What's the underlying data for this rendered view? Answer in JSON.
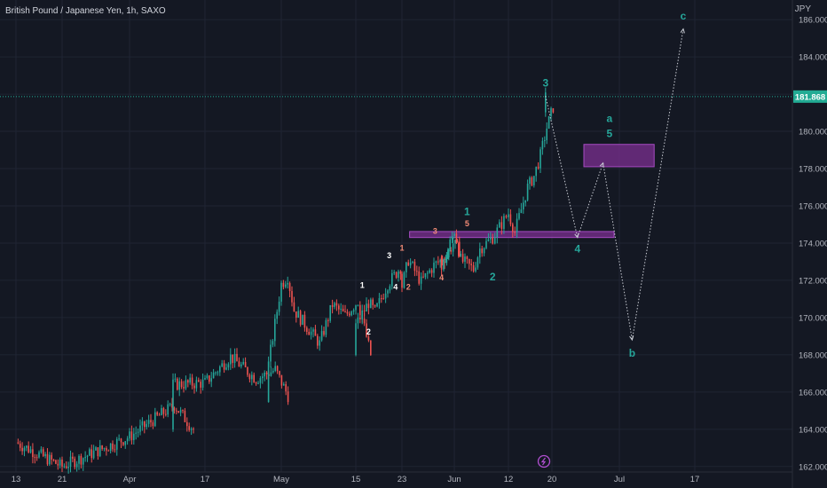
{
  "header": {
    "title": "British Pound / Japanese Yen, 1h, SAXO",
    "currency": "JPY"
  },
  "colors": {
    "background": "#141823",
    "up": "#26a69a",
    "down": "#ef5350",
    "grid": "#1f2433",
    "zone_fill": "#7b2f91",
    "zone_stroke": "#a64bc2",
    "wave_teal": "#26a69a",
    "wave_white": "#ffffff",
    "wave_salmon": "#f28b76",
    "price_tag": "#22ab94"
  },
  "chart_data": {
    "type": "candlestick",
    "x_ticks": [
      "13",
      "21",
      "Apr",
      "17",
      "May",
      "15",
      "23",
      "Jun",
      "12",
      "20",
      "Jul",
      "17"
    ],
    "y_ticks": [
      "162.000",
      "164.000",
      "166.000",
      "168.000",
      "170.000",
      "172.000",
      "174.000",
      "176.000",
      "178.000",
      "180.000",
      "182.000",
      "184.000",
      "186.000"
    ],
    "ylim": [
      162,
      186.6
    ],
    "last_price": "181.868",
    "price_path": [
      {
        "x": "13",
        "y": 163.3
      },
      {
        "x": "21",
        "y": 162.0
      },
      {
        "x": "Apr",
        "y": 163.6
      },
      {
        "x": "Apr+7",
        "y": 165.3
      },
      {
        "x": "Apr+10",
        "y": 164.0
      },
      {
        "x": "17-5",
        "y": 166.4
      },
      {
        "x": "17",
        "y": 166.5
      },
      {
        "x": "17+4",
        "y": 167.9
      },
      {
        "x": "17+8",
        "y": 166.7
      },
      {
        "x": "17+11",
        "y": 167.2
      },
      {
        "x": "17+13",
        "y": 165.8
      },
      {
        "x": "May-2",
        "y": 167.5
      },
      {
        "x": "May",
        "y": 171.8
      },
      {
        "x": "May+1",
        "y": 172.2
      },
      {
        "x": "May+2",
        "y": 170.4
      },
      {
        "x": "May+4",
        "y": 169.5
      },
      {
        "x": "May+6",
        "y": 168.6
      },
      {
        "x": "May+8",
        "y": 170.7
      },
      {
        "x": "May+10",
        "y": 170.1
      },
      {
        "x": "May+12",
        "y": 170.9
      },
      {
        "x": "May+14",
        "y": 168.0
      },
      {
        "x": "15",
        "y": 169.6
      },
      {
        "x": "15+2",
        "y": 170.8
      },
      {
        "x": "15+3",
        "y": 170.3
      },
      {
        "x": "15+5",
        "y": 171.8
      },
      {
        "x": "15+7",
        "y": 172.7
      },
      {
        "x": "23",
        "y": 171.7
      },
      {
        "x": "23+1",
        "y": 173.1
      },
      {
        "x": "23+3",
        "y": 171.9
      },
      {
        "x": "23+5",
        "y": 172.8
      },
      {
        "x": "23+7",
        "y": 173.3
      },
      {
        "x": "23+8",
        "y": 174.0
      },
      {
        "x": "23+9",
        "y": 173.6
      },
      {
        "x": "Jun-2",
        "y": 172.6
      },
      {
        "x": "Jun",
        "y": 174.7
      },
      {
        "x": "Jun+1",
        "y": 173.1
      },
      {
        "x": "Jun+3",
        "y": 172.6
      },
      {
        "x": "Jun+4",
        "y": 173.7
      },
      {
        "x": "Jun+6",
        "y": 174.3
      },
      {
        "x": "12",
        "y": 175.6
      },
      {
        "x": "12+1",
        "y": 174.6
      },
      {
        "x": "12+2",
        "y": 175.8
      },
      {
        "x": "12+3",
        "y": 177.0
      },
      {
        "x": "12+4",
        "y": 177.6
      },
      {
        "x": "12+5",
        "y": 178.7
      },
      {
        "x": "12+6",
        "y": 180.2
      },
      {
        "x": "12+7",
        "y": 181.3
      },
      {
        "x": "20-1",
        "y": 181.9
      }
    ],
    "zones": [
      {
        "name": "support-zone",
        "x_start": "Jun-7",
        "x_end": "Jun+25",
        "y_low": 174.3,
        "y_high": 174.62
      },
      {
        "name": "target-zone",
        "x_start": "20+5",
        "x_end": "20+16",
        "y_low": 178.1,
        "y_high": 179.3
      }
    ],
    "projection": [
      {
        "x": "20-1",
        "y": 181.9
      },
      {
        "x": "20+4",
        "y": 174.3
      },
      {
        "x": "20+8",
        "y": 178.3
      },
      {
        "x": "Jul+2",
        "y": 168.8
      },
      {
        "x": "Jul+10",
        "y": 185.5
      }
    ],
    "wave_labels": [
      {
        "text": "3",
        "color": "teal",
        "x": "20-1",
        "y": 182.4
      },
      {
        "text": "a",
        "color": "teal",
        "x": "20+9",
        "y": 180.5
      },
      {
        "text": "5",
        "color": "teal",
        "x": "20+9",
        "y": 179.7
      },
      {
        "text": "c",
        "color": "teal",
        "x": "Jul+10",
        "y": 186.0
      },
      {
        "text": "1",
        "color": "teal",
        "x": "Jun+2",
        "y": 175.5
      },
      {
        "text": "3",
        "color": "salmon",
        "x": "Jun-3",
        "y": 174.5
      },
      {
        "text": "5",
        "color": "salmon",
        "x": "Jun+2",
        "y": 174.9
      },
      {
        "text": "4",
        "color": "teal",
        "x": "20+4",
        "y": 173.5
      },
      {
        "text": "4",
        "color": "salmon",
        "x": "Jun-2",
        "y": 172.0
      },
      {
        "text": "2",
        "color": "teal",
        "x": "Jun+6",
        "y": 172.0
      },
      {
        "text": "b",
        "color": "teal",
        "x": "Jul+2",
        "y": 167.9
      },
      {
        "text": "1",
        "color": "salmon",
        "x": "23",
        "y": 173.6
      },
      {
        "text": "3",
        "color": "white",
        "x": "23-2",
        "y": 173.2
      },
      {
        "text": "4",
        "color": "white",
        "x": "23-1",
        "y": 171.5
      },
      {
        "text": "2",
        "color": "salmon",
        "x": "23+1",
        "y": 171.5
      },
      {
        "text": "1",
        "color": "white",
        "x": "15+1",
        "y": 171.6
      },
      {
        "text": "2",
        "color": "white",
        "x": "15+2",
        "y": 169.1
      }
    ]
  }
}
